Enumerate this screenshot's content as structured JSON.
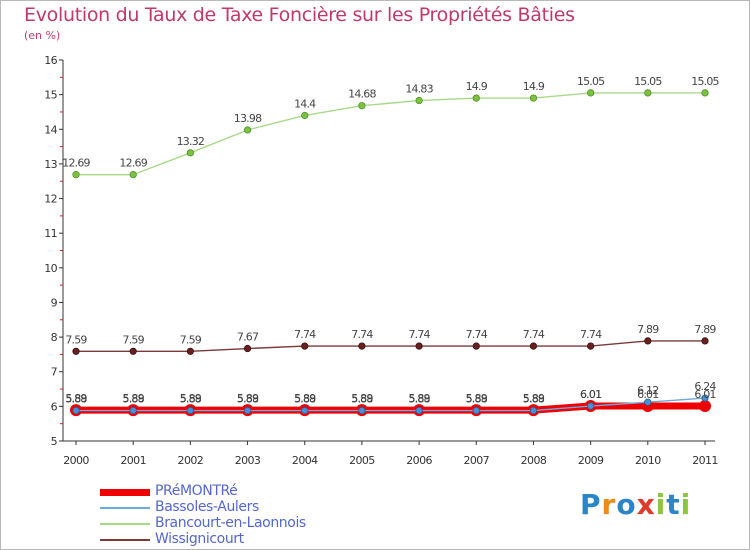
{
  "title": "Evolution du Taux de Taxe Foncière sur les Propriétés Bâties",
  "unit": "(en %)",
  "logo": {
    "text": "Proxiti",
    "letters": [
      "P",
      "r",
      "o",
      "x",
      "i",
      "t",
      "i"
    ],
    "colors": [
      "#2a86c8",
      "#f08a1c",
      "#2a86c8",
      "#e23a2a",
      "#8cc63f",
      "#2a86c8",
      "#8cc63f"
    ]
  },
  "chart_data": {
    "type": "line",
    "title": "Evolution du Taux de Taxe Foncière sur les Propriétés Bâties",
    "ylabel": "(en %)",
    "x": [
      "2000",
      "2001",
      "2002",
      "2003",
      "2004",
      "2005",
      "2006",
      "2007",
      "2008",
      "2009",
      "2010",
      "2011"
    ],
    "ylim": [
      5,
      16
    ],
    "yticks": [
      5,
      6,
      7,
      8,
      9,
      10,
      11,
      12,
      13,
      14,
      15,
      16
    ],
    "grid": false,
    "legend_position": "bottom-left",
    "series": [
      {
        "name": "PRéMONTRé",
        "color": "#ee0000",
        "values": [
          5.89,
          5.89,
          5.89,
          5.89,
          5.89,
          5.89,
          5.89,
          5.89,
          5.89,
          6.01,
          6.01,
          6.01
        ],
        "labels": [
          "5.89",
          "5.89",
          "5.89",
          "5.89",
          "5.89",
          "5.89",
          "5.89",
          "5.89",
          "5.89",
          "6.01",
          "6.01",
          "6.01"
        ]
      },
      {
        "name": "Bassoles-Aulers",
        "color": "#6fa8dc",
        "values": [
          5.88,
          5.88,
          5.88,
          5.88,
          5.88,
          5.88,
          5.88,
          5.88,
          5.88,
          6.01,
          6.12,
          6.24
        ],
        "labels": [
          "5.88",
          "5.88",
          "5.88",
          "5.88",
          "5.88",
          "5.88",
          "5.88",
          "5.88",
          "5.88",
          "6.01",
          "6.12",
          "6.24"
        ]
      },
      {
        "name": "Brancourt-en-Laonnois",
        "color": "#a8d98a",
        "values": [
          12.69,
          12.69,
          13.32,
          13.98,
          14.4,
          14.68,
          14.83,
          14.9,
          14.9,
          15.05,
          15.05,
          15.05
        ],
        "labels": [
          "12.69",
          "12.69",
          "13.32",
          "13.98",
          "14.4",
          "14.68",
          "14.83",
          "14.9",
          "14.9",
          "15.05",
          "15.05",
          "15.05"
        ]
      },
      {
        "name": "Wissignicourt",
        "color": "#7a3a3a",
        "values": [
          7.59,
          7.59,
          7.59,
          7.67,
          7.74,
          7.74,
          7.74,
          7.74,
          7.74,
          7.74,
          7.89,
          7.89
        ],
        "labels": [
          "7.59",
          "7.59",
          "7.59",
          "7.67",
          "7.74",
          "7.74",
          "7.74",
          "7.74",
          "7.74",
          "7.74",
          "7.89",
          "7.89"
        ]
      }
    ]
  }
}
